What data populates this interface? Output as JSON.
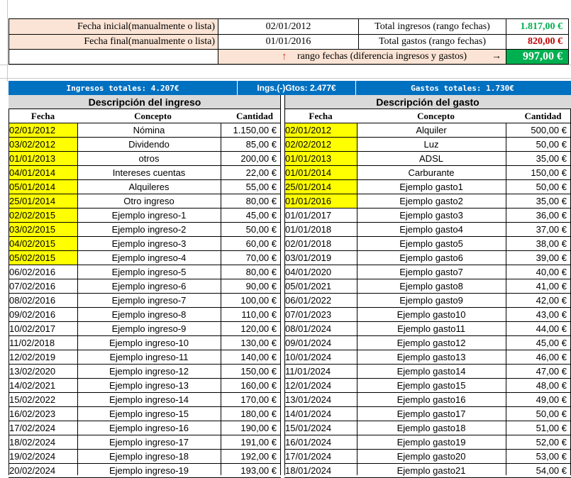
{
  "summary": {
    "start_label": "Fecha inicial(manualmente o lista)",
    "start_value": "02/01/2012",
    "end_label": "Fecha final(manualmente o lista)",
    "end_value": "01/01/2016",
    "arrow_up": "↑",
    "range_label": "rango fechas (diferencia ingresos y gastos)",
    "arrow_right": "→",
    "range_value": "997,00 €",
    "total_income_label": "Total ingresos (rango fechas)",
    "total_income_value": "1.817,00 €",
    "total_expense_label": "Total gastos (rango fechas)",
    "total_expense_value": "820,00 €"
  },
  "banner": {
    "income_total": "Ingresos totales: 4.207€",
    "balance": "Ings.(-)Gtos: 2.477€",
    "expense_total": "Gastos totales: 1.730€"
  },
  "colors": {
    "banner_blue": "#0070c0",
    "highlight_yellow": "#ffff00",
    "income_green": "#00b050",
    "expense_red": "#c00000"
  },
  "income": {
    "title": "Descripción del ingreso",
    "headers": {
      "date": "Fecha",
      "concept": "Concepto",
      "amount": "Cantidad"
    },
    "rows": [
      {
        "date": "02/01/2012",
        "concept": "Nómina",
        "amount": "1.150,00 €",
        "hl": true
      },
      {
        "date": "03/02/2012",
        "concept": "Dividendo",
        "amount": "85,00 €",
        "hl": true
      },
      {
        "date": "01/01/2013",
        "concept": "otros",
        "amount": "200,00 €",
        "hl": true
      },
      {
        "date": "04/01/2014",
        "concept": "Intereses cuentas",
        "amount": "22,00 €",
        "hl": true
      },
      {
        "date": "05/01/2014",
        "concept": "Alquileres",
        "amount": "55,00 €",
        "hl": true
      },
      {
        "date": "25/01/2014",
        "concept": "Otro ingreso",
        "amount": "80,00 €",
        "hl": true
      },
      {
        "date": "02/02/2015",
        "concept": "Ejemplo ingreso-1",
        "amount": "45,00 €",
        "hl": true
      },
      {
        "date": "03/02/2015",
        "concept": "Ejemplo ingreso-2",
        "amount": "50,00 €",
        "hl": true
      },
      {
        "date": "04/02/2015",
        "concept": "Ejemplo ingreso-3",
        "amount": "60,00 €",
        "hl": true
      },
      {
        "date": "05/02/2015",
        "concept": "Ejemplo ingreso-4",
        "amount": "70,00 €",
        "hl": true
      },
      {
        "date": "06/02/2016",
        "concept": "Ejemplo ingreso-5",
        "amount": "80,00 €",
        "hl": false
      },
      {
        "date": "07/02/2016",
        "concept": "Ejemplo ingreso-6",
        "amount": "90,00 €",
        "hl": false
      },
      {
        "date": "08/02/2016",
        "concept": "Ejemplo ingreso-7",
        "amount": "100,00 €",
        "hl": false
      },
      {
        "date": "09/02/2016",
        "concept": "Ejemplo ingreso-8",
        "amount": "110,00 €",
        "hl": false
      },
      {
        "date": "10/02/2017",
        "concept": "Ejemplo ingreso-9",
        "amount": "120,00 €",
        "hl": false
      },
      {
        "date": "11/02/2018",
        "concept": "Ejemplo ingreso-10",
        "amount": "130,00 €",
        "hl": false
      },
      {
        "date": "12/02/2019",
        "concept": "Ejemplo ingreso-11",
        "amount": "140,00 €",
        "hl": false
      },
      {
        "date": "13/02/2020",
        "concept": "Ejemplo ingreso-12",
        "amount": "150,00 €",
        "hl": false
      },
      {
        "date": "14/02/2021",
        "concept": "Ejemplo ingreso-13",
        "amount": "160,00 €",
        "hl": false
      },
      {
        "date": "15/02/2022",
        "concept": "Ejemplo ingreso-14",
        "amount": "170,00 €",
        "hl": false
      },
      {
        "date": "16/02/2023",
        "concept": "Ejemplo ingreso-15",
        "amount": "180,00 €",
        "hl": false
      },
      {
        "date": "17/02/2024",
        "concept": "Ejemplo ingreso-16",
        "amount": "190,00 €",
        "hl": false
      },
      {
        "date": "18/02/2024",
        "concept": "Ejemplo ingreso-17",
        "amount": "191,00 €",
        "hl": false
      },
      {
        "date": "19/02/2024",
        "concept": "Ejemplo ingreso-18",
        "amount": "192,00 €",
        "hl": false
      },
      {
        "date": "20/02/2024",
        "concept": "Ejemplo ingreso-19",
        "amount": "193,00 €",
        "hl": false
      }
    ]
  },
  "expense": {
    "title": "Descripción del gasto",
    "headers": {
      "date": "Fecha",
      "concept": "Concepto",
      "amount": "Cantidad"
    },
    "rows": [
      {
        "date": "02/01/2012",
        "concept": "Alquiler",
        "amount": "500,00 €",
        "hl": true
      },
      {
        "date": "02/02/2012",
        "concept": "Luz",
        "amount": "50,00 €",
        "hl": true
      },
      {
        "date": "01/01/2013",
        "concept": "ADSL",
        "amount": "35,00 €",
        "hl": true
      },
      {
        "date": "01/01/2014",
        "concept": "Carburante",
        "amount": "150,00 €",
        "hl": true
      },
      {
        "date": "25/01/2014",
        "concept": "Ejemplo gasto1",
        "amount": "50,00 €",
        "hl": true
      },
      {
        "date": "01/01/2016",
        "concept": "Ejemplo gasto2",
        "amount": "35,00 €",
        "hl": true
      },
      {
        "date": "01/01/2017",
        "concept": "Ejemplo gasto3",
        "amount": "36,00 €",
        "hl": false
      },
      {
        "date": "01/01/2018",
        "concept": "Ejemplo gasto4",
        "amount": "37,00 €",
        "hl": false
      },
      {
        "date": "02/01/2018",
        "concept": "Ejemplo gasto5",
        "amount": "38,00 €",
        "hl": false
      },
      {
        "date": "03/01/2019",
        "concept": "Ejemplo gasto6",
        "amount": "39,00 €",
        "hl": false
      },
      {
        "date": "04/01/2020",
        "concept": "Ejemplo gasto7",
        "amount": "40,00 €",
        "hl": false
      },
      {
        "date": "05/01/2021",
        "concept": "Ejemplo gasto8",
        "amount": "41,00 €",
        "hl": false
      },
      {
        "date": "06/01/2022",
        "concept": "Ejemplo gasto9",
        "amount": "42,00 €",
        "hl": false
      },
      {
        "date": "07/01/2023",
        "concept": "Ejemplo gasto10",
        "amount": "43,00 €",
        "hl": false
      },
      {
        "date": "08/01/2024",
        "concept": "Ejemplo gasto11",
        "amount": "44,00 €",
        "hl": false
      },
      {
        "date": "09/01/2024",
        "concept": "Ejemplo gasto12",
        "amount": "45,00 €",
        "hl": false
      },
      {
        "date": "10/01/2024",
        "concept": "Ejemplo gasto13",
        "amount": "46,00 €",
        "hl": false
      },
      {
        "date": "11/01/2024",
        "concept": "Ejemplo gasto14",
        "amount": "47,00 €",
        "hl": false
      },
      {
        "date": "12/01/2024",
        "concept": "Ejemplo gasto15",
        "amount": "48,00 €",
        "hl": false
      },
      {
        "date": "13/01/2024",
        "concept": "Ejemplo gasto16",
        "amount": "49,00 €",
        "hl": false
      },
      {
        "date": "14/01/2024",
        "concept": "Ejemplo gasto17",
        "amount": "50,00 €",
        "hl": false
      },
      {
        "date": "15/01/2024",
        "concept": "Ejemplo gasto18",
        "amount": "51,00 €",
        "hl": false
      },
      {
        "date": "16/01/2024",
        "concept": "Ejemplo gasto19",
        "amount": "52,00 €",
        "hl": false
      },
      {
        "date": "17/01/2024",
        "concept": "Ejemplo gasto20",
        "amount": "53,00 €",
        "hl": false
      },
      {
        "date": "18/01/2024",
        "concept": "Ejemplo gasto21",
        "amount": "54,00 €",
        "hl": false
      }
    ]
  }
}
